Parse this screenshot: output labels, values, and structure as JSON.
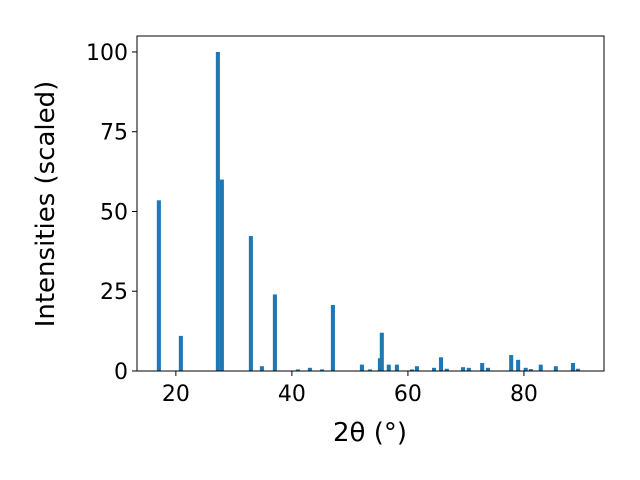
{
  "chart_data": {
    "type": "bar",
    "x_label": "2θ (°)",
    "y_label": "Intensities (scaled)",
    "color": "#1f77b4",
    "x": [
      17.07,
      20.86,
      27.24,
      27.93,
      32.93,
      34.83,
      37.07,
      41.03,
      43.1,
      45.2,
      47.07,
      52.07,
      53.45,
      55.17,
      55.5,
      56.7,
      58.1,
      60.7,
      61.55,
      64.5,
      65.7,
      66.7,
      69.5,
      70.5,
      72.8,
      73.8,
      77.8,
      79.0,
      80.3,
      81.2,
      82.9,
      85.5,
      88.45,
      89.3
    ],
    "values": [
      53.5,
      11,
      100,
      60,
      42.3,
      1.5,
      24,
      0.5,
      1,
      0.5,
      20.7,
      2,
      0.5,
      4,
      12,
      2,
      2,
      0.5,
      1.5,
      1,
      4.3,
      0.7,
      1.2,
      1,
      2.5,
      1,
      5,
      3.5,
      1,
      0.6,
      2,
      1.5,
      2.5,
      0.7
    ],
    "xlim": [
      13.3,
      93.8
    ],
    "ylim": [
      0,
      105
    ],
    "xticks": [
      20,
      40,
      60,
      80
    ],
    "yticks": [
      0,
      25,
      50,
      75,
      100
    ]
  }
}
